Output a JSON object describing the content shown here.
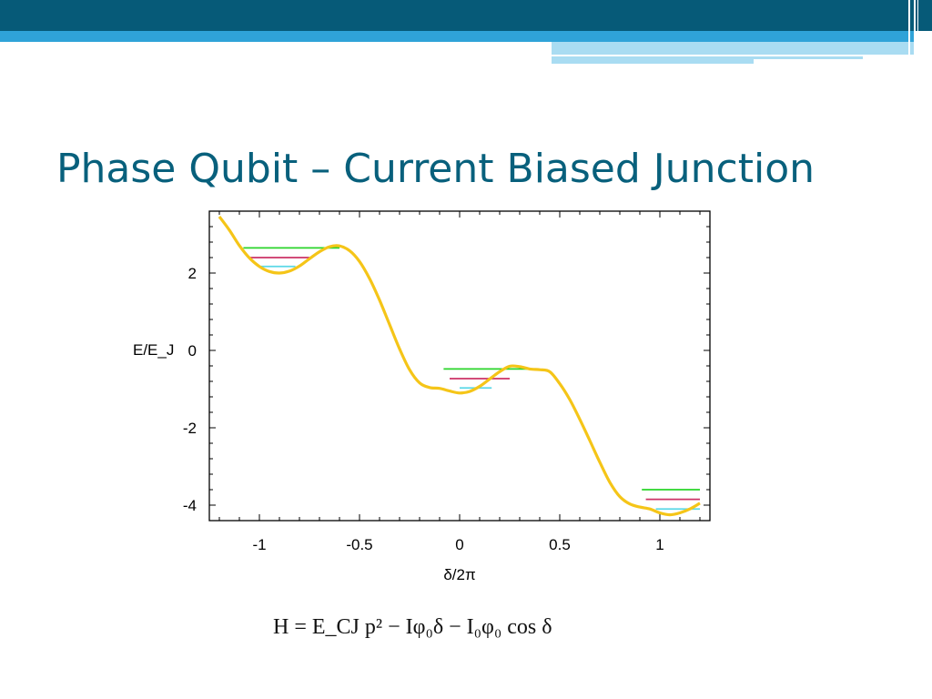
{
  "slide": {
    "title": "Phase Qubit – Current Biased Junction",
    "formula": "H = E_CJ p² − Iφ₀δ − I₀φ₀ cos δ",
    "colors": {
      "band_dark": "#065a78",
      "band_light": "#2fa3d8",
      "band_pale": "#a9dcf2",
      "title_text": "#08607c"
    }
  },
  "chart_data": {
    "type": "line",
    "title": "",
    "xlabel": "δ/2π",
    "ylabel": "E/E_J",
    "xlim": [
      -1.25,
      1.25
    ],
    "ylim": [
      -4.4,
      3.6
    ],
    "xticks": [
      -1,
      -0.5,
      0,
      0.5,
      1
    ],
    "xtick_labels": [
      "-1",
      "-0.5",
      "0",
      "0.5",
      "1"
    ],
    "yticks": [
      2,
      0,
      -2,
      -4
    ],
    "ytick_labels": [
      "2",
      "0",
      "-2",
      "-4"
    ],
    "grid": false,
    "potential": {
      "color": "#f5c518",
      "x": [
        -1.2,
        -1.15,
        -1.1,
        -1.05,
        -1.0,
        -0.95,
        -0.9,
        -0.85,
        -0.8,
        -0.75,
        -0.7,
        -0.65,
        -0.6,
        -0.55,
        -0.5,
        -0.45,
        -0.4,
        -0.35,
        -0.3,
        -0.25,
        -0.2,
        -0.15,
        -0.1,
        -0.05,
        0.0,
        0.05,
        0.1,
        0.15,
        0.2,
        0.25,
        0.3,
        0.35,
        0.4,
        0.45,
        0.5,
        0.55,
        0.6,
        0.65,
        0.7,
        0.75,
        0.8,
        0.85,
        0.9,
        0.95,
        1.0,
        1.05,
        1.1,
        1.15,
        1.2
      ],
      "y": [
        3.46,
        3.11,
        2.71,
        2.39,
        2.17,
        2.04,
        2.0,
        2.05,
        2.18,
        2.37,
        2.55,
        2.68,
        2.7,
        2.58,
        2.3,
        1.86,
        1.3,
        0.67,
        0.04,
        -0.5,
        -0.84,
        -0.96,
        -0.98,
        -1.05,
        -1.1,
        -1.06,
        -0.93,
        -0.74,
        -0.55,
        -0.41,
        -0.42,
        -0.48,
        -0.5,
        -0.55,
        -0.86,
        -1.27,
        -1.78,
        -2.33,
        -2.89,
        -3.41,
        -3.78,
        -3.97,
        -4.05,
        -4.1,
        -4.2,
        -4.25,
        -4.2,
        -4.1,
        -3.95
      ]
    },
    "energy_levels": [
      {
        "well": "left",
        "color": "#2ad42a",
        "y": 2.65,
        "x": [
          -1.08,
          -0.6
        ]
      },
      {
        "well": "left",
        "color": "#cc3366",
        "y": 2.4,
        "x": [
          -1.05,
          -0.75
        ]
      },
      {
        "well": "left",
        "color": "#5ad8e6",
        "y": 2.17,
        "x": [
          -1.0,
          -0.82
        ]
      },
      {
        "well": "middle",
        "color": "#2ad42a",
        "y": -0.48,
        "x": [
          -0.08,
          0.38
        ]
      },
      {
        "well": "middle",
        "color": "#cc3366",
        "y": -0.73,
        "x": [
          -0.05,
          0.25
        ]
      },
      {
        "well": "middle",
        "color": "#5ad8e6",
        "y": -0.97,
        "x": [
          0.0,
          0.16
        ]
      },
      {
        "well": "right",
        "color": "#2ad42a",
        "y": -3.6,
        "x": [
          0.91,
          1.2
        ]
      },
      {
        "well": "right",
        "color": "#cc3366",
        "y": -3.85,
        "x": [
          0.93,
          1.2
        ]
      },
      {
        "well": "right",
        "color": "#5ad8e6",
        "y": -4.1,
        "x": [
          0.98,
          1.2
        ]
      }
    ]
  }
}
